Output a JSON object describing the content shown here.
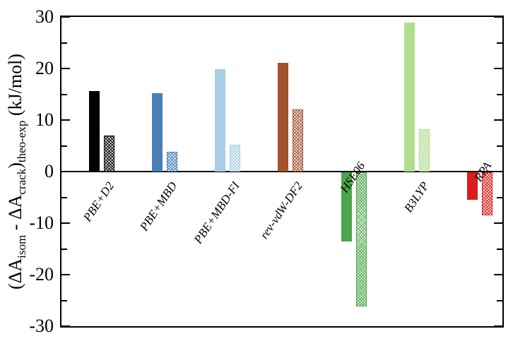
{
  "y_axis_title": {
    "p1": "(ΔA",
    "s1": "isom",
    "p2": " - ΔA",
    "s2": "crack",
    "p3": ")",
    "s3": "theo-exp",
    "p4": " (kJ/mol)"
  },
  "chart_data": {
    "type": "bar",
    "title": "",
    "xlabel": "",
    "ylabel": "(ΔA_isom - ΔA_crack)_theo-exp (kJ/mol)",
    "ylim": [
      -30,
      30
    ],
    "yticks_major": [
      30,
      20,
      10,
      0,
      -10,
      -20,
      -30
    ],
    "ytick_labels": [
      "30",
      "20",
      "10",
      "0",
      "-10",
      "-20",
      "-30"
    ],
    "yticks_minor": [
      25,
      15,
      5,
      -5,
      -15,
      -25
    ],
    "grid": false,
    "legend": "none",
    "categories": [
      "PBE+D2",
      "PBE+MBD",
      "PBE+MBD-FI",
      "rev-vdW-DF2",
      "HSE06",
      "B3LYP",
      "RPA"
    ],
    "category_label_side": [
      "below",
      "below",
      "below",
      "below",
      "above",
      "below",
      "above"
    ],
    "bar_colors": [
      "#000000",
      "#4a7eb5",
      "#a9cde6",
      "#a0522d",
      "#4aa64a",
      "#b1dd8d",
      "#dd1c1c"
    ],
    "axis_color": "#000000",
    "background_color": "#ffffff",
    "series": [
      {
        "name": "solid",
        "values": [
          15.6,
          15.2,
          19.8,
          21.1,
          -13.4,
          28.9,
          -5.4
        ]
      },
      {
        "name": "hatched",
        "values": [
          7.0,
          3.8,
          5.2,
          12.1,
          -26.0,
          8.2,
          -8.3
        ]
      }
    ]
  }
}
